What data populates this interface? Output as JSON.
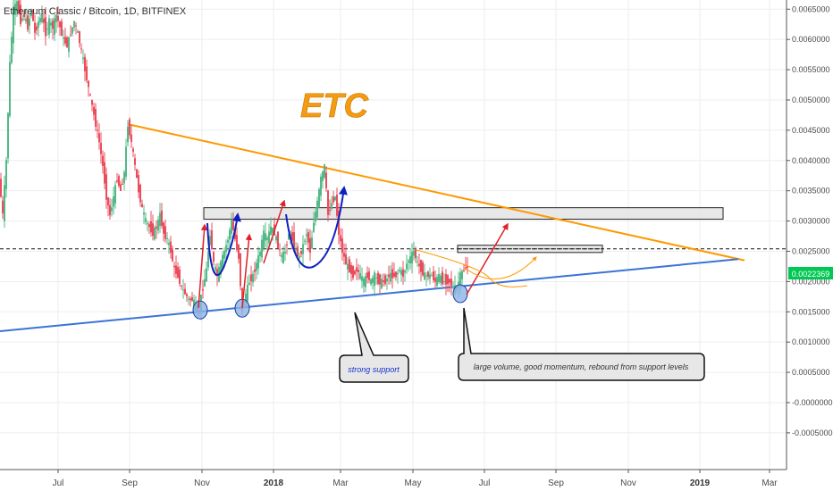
{
  "header": {
    "symbol_line": "Ethereum Classic / Bitcoin, 1D, BITFINEX"
  },
  "watermark": "ETC",
  "price_badge": "0.0022369",
  "callouts": {
    "strong_support": "strong support",
    "large_volume": "large volume, good momentum, rebound from support levels"
  },
  "colors": {
    "up_candle": "#53b987",
    "down_candle": "#eb4d5c",
    "resistance_line": "#ff9800",
    "support_line": "#3b73d6",
    "arrow_red": "#e0202a",
    "arrow_blue": "#1020c0",
    "badge_green": "#00c853",
    "watermark": "#f39c12"
  },
  "chart_data": {
    "type": "candlestick",
    "title": "Ethereum Classic / Bitcoin, 1D, BITFINEX",
    "y_axis": {
      "ylim": [
        -0.00075,
        0.0066
      ],
      "ticks": [
        "0.0065000",
        "0.0060000",
        "0.0055000",
        "0.0050000",
        "0.0045000",
        "0.0040000",
        "0.0035000",
        "0.0030000",
        "0.0025000",
        "0.0020000",
        "0.0015000",
        "0.0010000",
        "0.0005000",
        "-0.0000000",
        "-0.0005000"
      ],
      "tick_values": [
        0.0065,
        0.006,
        0.0055,
        0.005,
        0.0045,
        0.004,
        0.0035,
        0.003,
        0.0025,
        0.002,
        0.0015,
        0.001,
        0.0005,
        0.0,
        -0.0005
      ]
    },
    "x_axis": {
      "labels": [
        "Jul",
        "Sep",
        "Nov",
        "2018",
        "Mar",
        "May",
        "Jul",
        "Sep",
        "Nov",
        "2019",
        "Mar"
      ],
      "bold": [
        "2018",
        "2019"
      ]
    },
    "last_price": 0.0022369,
    "dashed_level": 0.00254,
    "series": [
      {
        "type": "close_path",
        "points": [
          [
            0,
            0.0037
          ],
          [
            4,
            0.0031
          ],
          [
            8,
            0.004
          ],
          [
            12,
            0.0056
          ],
          [
            16,
            0.0065
          ],
          [
            20,
            0.0066
          ],
          [
            24,
            0.0063
          ],
          [
            28,
            0.0064
          ],
          [
            32,
            0.0062
          ],
          [
            36,
            0.0065
          ],
          [
            40,
            0.0061
          ],
          [
            44,
            0.0063
          ],
          [
            48,
            0.0064
          ],
          [
            52,
            0.0061
          ],
          [
            56,
            0.0063
          ],
          [
            60,
            0.0062
          ],
          [
            64,
            0.0064
          ],
          [
            68,
            0.0062
          ],
          [
            72,
            0.006
          ],
          [
            76,
            0.0059
          ],
          [
            80,
            0.0061
          ],
          [
            84,
            0.0063
          ],
          [
            88,
            0.0061
          ],
          [
            92,
            0.0058
          ],
          [
            96,
            0.0055
          ],
          [
            100,
            0.0052
          ],
          [
            104,
            0.0049
          ],
          [
            108,
            0.0046
          ],
          [
            112,
            0.0043
          ],
          [
            116,
            0.0039
          ],
          [
            120,
            0.0034
          ],
          [
            124,
            0.0031
          ],
          [
            128,
            0.0034
          ],
          [
            132,
            0.0037
          ],
          [
            136,
            0.0035
          ],
          [
            140,
            0.0038
          ],
          [
            144,
            0.0046
          ],
          [
            148,
            0.0043
          ],
          [
            152,
            0.0039
          ],
          [
            156,
            0.0035
          ],
          [
            160,
            0.0032
          ],
          [
            164,
            0.003
          ],
          [
            168,
            0.0029
          ],
          [
            172,
            0.0028
          ],
          [
            176,
            0.0029
          ],
          [
            180,
            0.0031
          ],
          [
            184,
            0.0028
          ],
          [
            188,
            0.0027
          ],
          [
            192,
            0.0025
          ],
          [
            196,
            0.0022
          ],
          [
            200,
            0.0021
          ],
          [
            204,
            0.0019
          ],
          [
            208,
            0.0018
          ],
          [
            212,
            0.0017
          ],
          [
            216,
            0.0017
          ],
          [
            220,
            0.0016
          ],
          [
            224,
            0.0016
          ],
          [
            228,
            0.0019
          ],
          [
            232,
            0.0022
          ],
          [
            236,
            0.0028
          ],
          [
            240,
            0.0023
          ],
          [
            244,
            0.0021
          ],
          [
            248,
            0.0023
          ],
          [
            252,
            0.0025
          ],
          [
            256,
            0.0027
          ],
          [
            260,
            0.003
          ],
          [
            264,
            0.0027
          ],
          [
            268,
            0.0024
          ],
          [
            272,
            0.0015
          ],
          [
            276,
            0.0018
          ],
          [
            280,
            0.002
          ],
          [
            284,
            0.0021
          ],
          [
            288,
            0.0023
          ],
          [
            292,
            0.0025
          ],
          [
            296,
            0.0028
          ],
          [
            300,
            0.0027
          ],
          [
            304,
            0.0029
          ],
          [
            308,
            0.0028
          ],
          [
            312,
            0.0026
          ],
          [
            316,
            0.0024
          ],
          [
            320,
            0.0025
          ],
          [
            324,
            0.0028
          ],
          [
            328,
            0.0027
          ],
          [
            332,
            0.0025
          ],
          [
            336,
            0.0024
          ],
          [
            340,
            0.0026
          ],
          [
            344,
            0.0028
          ],
          [
            348,
            0.0025
          ],
          [
            352,
            0.003
          ],
          [
            356,
            0.0033
          ],
          [
            360,
            0.0037
          ],
          [
            364,
            0.0039
          ],
          [
            368,
            0.0031
          ],
          [
            372,
            0.0033
          ],
          [
            376,
            0.0034
          ],
          [
            380,
            0.0028
          ],
          [
            384,
            0.0025
          ],
          [
            388,
            0.0023
          ],
          [
            392,
            0.0022
          ],
          [
            396,
            0.0021
          ],
          [
            400,
            0.0022
          ],
          [
            404,
            0.0021
          ],
          [
            408,
            0.002
          ],
          [
            412,
            0.0021
          ],
          [
            416,
            0.002
          ],
          [
            420,
            0.0021
          ],
          [
            424,
            0.002
          ],
          [
            428,
            0.002
          ],
          [
            432,
            0.002
          ],
          [
            436,
            0.0021
          ],
          [
            440,
            0.0021
          ],
          [
            444,
            0.0021
          ],
          [
            448,
            0.0022
          ],
          [
            452,
            0.0021
          ],
          [
            456,
            0.0023
          ],
          [
            460,
            0.0024
          ],
          [
            464,
            0.0025
          ],
          [
            468,
            0.0023
          ],
          [
            472,
            0.0022
          ],
          [
            476,
            0.0021
          ],
          [
            480,
            0.0021
          ],
          [
            484,
            0.0021
          ],
          [
            488,
            0.002
          ],
          [
            492,
            0.0021
          ],
          [
            496,
            0.002
          ],
          [
            500,
            0.002
          ],
          [
            504,
            0.002
          ],
          [
            508,
            0.0019
          ],
          [
            512,
            0.0019
          ],
          [
            516,
            0.0021
          ],
          [
            520,
            0.0022
          ],
          [
            524,
            0.00224
          ]
        ]
      }
    ],
    "trend_lines": [
      {
        "name": "resistance",
        "from": [
          143,
          0.0046
        ],
        "to": [
          833,
          0.00235
        ]
      },
      {
        "name": "support",
        "from": [
          0,
          0.00118
        ],
        "to": [
          826,
          0.00237
        ]
      }
    ],
    "zones": [
      {
        "name": "resistance-zone",
        "x0": 228,
        "x1": 809,
        "y0": 0.00322,
        "y1": 0.00303
      },
      {
        "name": "near-zone",
        "x0": 512,
        "x1": 674,
        "y0": 0.0026,
        "y1": 0.00248
      }
    ],
    "support_circles": [
      [
        224,
        0.00153
      ],
      [
        271,
        0.00156
      ],
      [
        515,
        0.0018
      ]
    ],
    "grid": true
  }
}
